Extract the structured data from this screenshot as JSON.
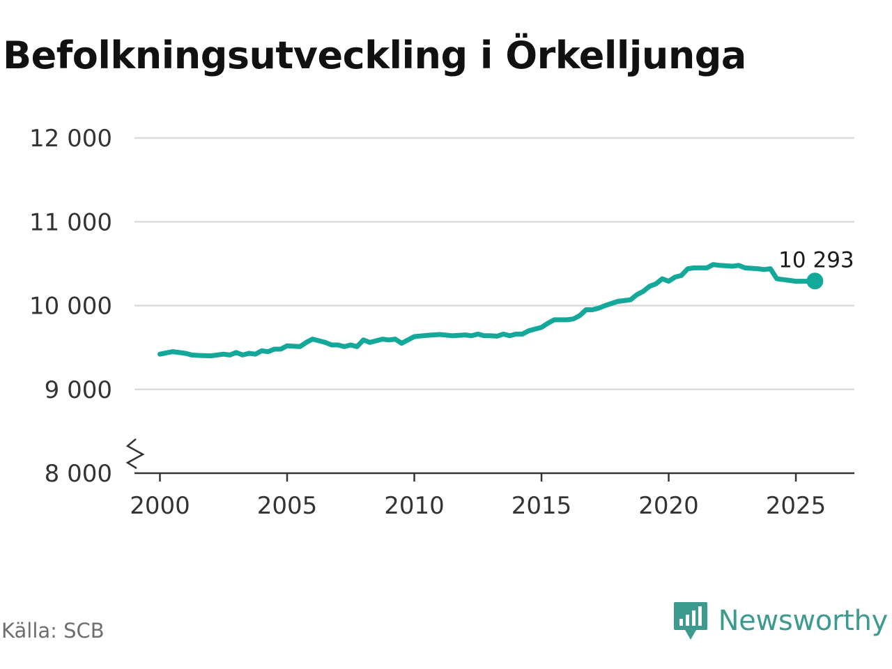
{
  "title": "Befolkningsutveckling i Örkelljunga",
  "source": "Källa: SCB",
  "brand": {
    "name": "Newsworthy",
    "icon": "newsworthy-logo-icon",
    "color": "#3d9a8e"
  },
  "chart_data": {
    "type": "line",
    "title": "Befolkningsutveckling i Örkelljunga",
    "xlabel": "",
    "ylabel": "",
    "xlim": [
      1999,
      2027.3
    ],
    "ylim": [
      8000,
      12000
    ],
    "axis_break": true,
    "grid": true,
    "line_color": "#14a89b",
    "y_ticks": [
      {
        "value": 8000,
        "label": "8 000"
      },
      {
        "value": 9000,
        "label": "9 000"
      },
      {
        "value": 10000,
        "label": "10 000"
      },
      {
        "value": 11000,
        "label": "11 000"
      },
      {
        "value": 12000,
        "label": "12 000"
      }
    ],
    "x_ticks": [
      {
        "value": 2000,
        "label": "2000"
      },
      {
        "value": 2005,
        "label": "2005"
      },
      {
        "value": 2010,
        "label": "2010"
      },
      {
        "value": 2015,
        "label": "2015"
      },
      {
        "value": 2020,
        "label": "2020"
      },
      {
        "value": 2025,
        "label": "2025"
      }
    ],
    "end_label": "10 293",
    "series": [
      {
        "x": [
          2000.0,
          2000.5,
          2001.0,
          2001.25,
          2001.5,
          2002.0,
          2002.5,
          2002.75,
          2003.0,
          2003.25,
          2003.5,
          2003.75,
          2004.0,
          2004.25,
          2004.5,
          2004.75,
          2005.0,
          2005.5,
          2005.75,
          2006.0,
          2006.5,
          2006.75,
          2007.0,
          2007.25,
          2007.5,
          2007.75,
          2008.0,
          2008.25,
          2008.5,
          2008.75,
          2009.0,
          2009.25,
          2009.5,
          2010.0,
          2010.5,
          2011.0,
          2011.5,
          2011.75,
          2012.0,
          2012.25,
          2012.5,
          2012.75,
          2013.0,
          2013.25,
          2013.5,
          2013.75,
          2014.0,
          2014.25,
          2014.5,
          2015.0,
          2015.25,
          2015.5,
          2016.0,
          2016.25,
          2016.5,
          2016.75,
          2017.0,
          2017.25,
          2017.5,
          2018.0,
          2018.5,
          2018.75,
          2019.0,
          2019.25,
          2019.5,
          2019.75,
          2020.0,
          2020.25,
          2020.5,
          2020.75,
          2021.0,
          2021.5,
          2021.75,
          2022.0,
          2022.5,
          2022.75,
          2023.0,
          2023.5,
          2023.75,
          2024.0,
          2024.25,
          2024.5,
          2024.75,
          2025.0,
          2025.25,
          2025.5,
          2025.75
        ],
        "y": [
          9420,
          9450,
          9430,
          9410,
          9405,
          9400,
          9420,
          9410,
          9440,
          9410,
          9430,
          9420,
          9460,
          9450,
          9480,
          9480,
          9520,
          9510,
          9560,
          9600,
          9560,
          9530,
          9530,
          9510,
          9530,
          9510,
          9590,
          9560,
          9580,
          9600,
          9590,
          9600,
          9550,
          9630,
          9645,
          9655,
          9640,
          9645,
          9650,
          9640,
          9660,
          9640,
          9640,
          9635,
          9660,
          9640,
          9660,
          9660,
          9700,
          9740,
          9790,
          9830,
          9830,
          9840,
          9880,
          9950,
          9950,
          9970,
          10000,
          10050,
          10070,
          10130,
          10170,
          10230,
          10260,
          10320,
          10290,
          10340,
          10360,
          10440,
          10450,
          10450,
          10490,
          10480,
          10470,
          10480,
          10450,
          10440,
          10430,
          10440,
          10320,
          10310,
          10300,
          10290,
          10290,
          10290,
          10293
        ]
      }
    ]
  }
}
